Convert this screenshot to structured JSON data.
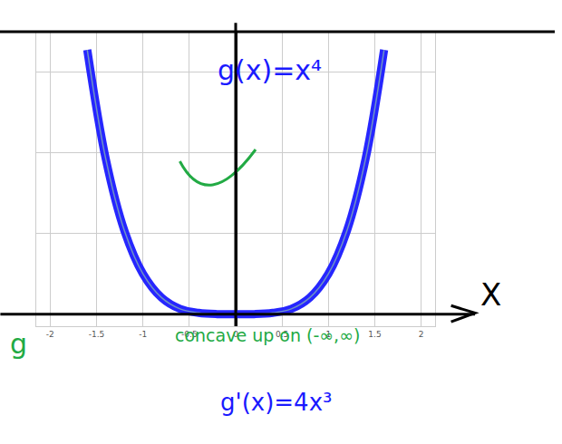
{
  "chart_data": {
    "type": "line",
    "x": [
      -1.6,
      -1.4,
      -1.2,
      -1.0,
      -0.8,
      -0.6,
      -0.4,
      -0.2,
      0,
      0.2,
      0.4,
      0.6,
      0.8,
      1.0,
      1.2,
      1.4,
      1.6
    ],
    "values": [
      6.55,
      3.84,
      2.07,
      1.0,
      0.41,
      0.13,
      0.03,
      0.0,
      0,
      0.0,
      0.03,
      0.13,
      0.41,
      1.0,
      2.07,
      3.84,
      6.55
    ],
    "color": "#1a1aff",
    "xlim": [
      -2.15,
      2.15
    ],
    "ylim": [
      -0.3,
      7
    ],
    "xticks": [
      -2,
      -1.5,
      -1,
      -0.5,
      0,
      0.5,
      1,
      1.5,
      2
    ],
    "yticks": [
      0,
      2,
      4,
      6
    ],
    "grid": true,
    "tick_labels": "x",
    "annotations": [
      "g(x)=x⁴",
      "concave up on (-∞,∞)",
      "g'(x)=4x³",
      "g",
      "X"
    ]
  }
}
